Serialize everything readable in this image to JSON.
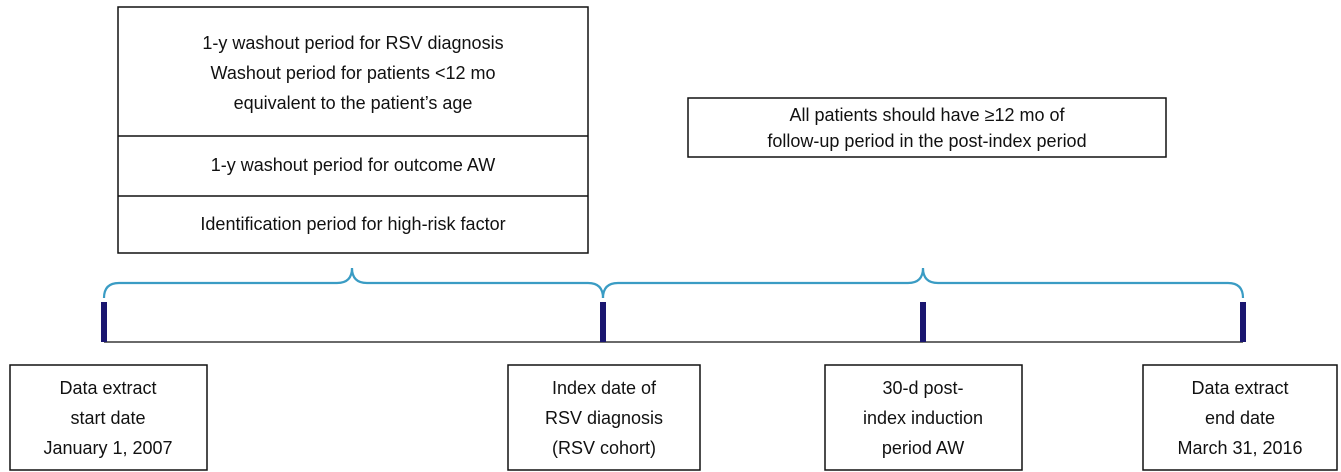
{
  "top_box": {
    "sections": [
      {
        "lines": [
          "1-y washout period for RSV diagnosis",
          "Washout period for patients <12 mo",
          "equivalent to the patient’s age"
        ]
      },
      {
        "lines": [
          "1-y washout period for outcome AW"
        ]
      },
      {
        "lines": [
          "Identification period for high-risk factor"
        ]
      }
    ]
  },
  "followup_box": {
    "lines": [
      "All patients should have ≥12 mo of",
      "follow-up period in the post-index period"
    ]
  },
  "timeline": [
    {
      "lines": [
        "Data extract",
        "start date",
        "January 1, 2007"
      ]
    },
    {
      "lines": [
        "Index date of",
        "RSV diagnosis",
        "(RSV cohort)"
      ]
    },
    {
      "lines": [
        "30-d post-",
        "index induction",
        "period AW"
      ]
    },
    {
      "lines": [
        "Data extract",
        "end date",
        "March 31, 2016"
      ]
    }
  ]
}
